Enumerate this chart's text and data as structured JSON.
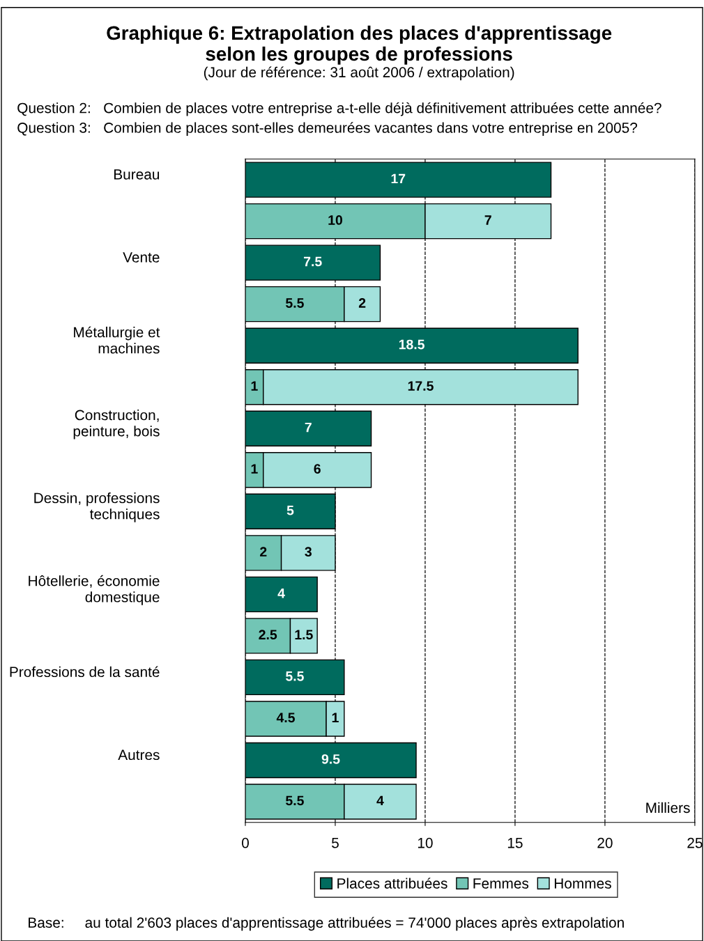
{
  "chart_data": {
    "type": "bar",
    "orientation": "horizontal",
    "stacked": true,
    "title": "Graphique 6: Extrapolation des places d'apprentissage\nselon les groupes de professions",
    "subtitle": "(Jour de référence: 31 août 2006 / extrapolation)",
    "xlabel": "Milliers",
    "categories": [
      "Bureau",
      null,
      "Vente",
      null,
      "Métallurgie et\nmachines",
      null,
      "Construction,\npeinture, bois",
      null,
      "Dessin, professions\ntechniques",
      null,
      "Hôtellerie, économie\ndomestique",
      null,
      "Professions de la santé",
      null,
      "Autres",
      null
    ],
    "series": [
      {
        "name": "Places attribuées",
        "color": "#006b5e",
        "values": [
          17,
          null,
          7.5,
          null,
          18.5,
          null,
          7,
          null,
          5,
          null,
          4,
          null,
          5.5,
          null,
          9.5,
          null
        ]
      },
      {
        "name": "Femmes",
        "color": "#72c5b5",
        "values": [
          null,
          10,
          null,
          5.5,
          null,
          1,
          null,
          1,
          null,
          2,
          null,
          2.5,
          null,
          4.5,
          null,
          5.5
        ]
      },
      {
        "name": "Hommes",
        "color": "#a3e1dc",
        "values": [
          null,
          7,
          null,
          2,
          null,
          17.5,
          null,
          6,
          null,
          3,
          null,
          1.5,
          null,
          1,
          null,
          4
        ]
      }
    ],
    "xlim": [
      0,
      25
    ],
    "xticks": [
      0,
      5,
      10,
      15,
      20,
      25
    ],
    "grid": "x",
    "line_style": "dashed",
    "data_labels": true,
    "legend": "bottom",
    "annotations": [
      "Question 2:   Combien de places votre entreprise a-t-elle déjà définitivement attribuées cette année?",
      "Question 3:   Combien de places sont-elles demeurées vacantes dans votre entreprise en 2005?",
      "Base:     au total 2'603 places d'apprentissage attribuées = 74'000 places après extrapolation"
    ]
  }
}
